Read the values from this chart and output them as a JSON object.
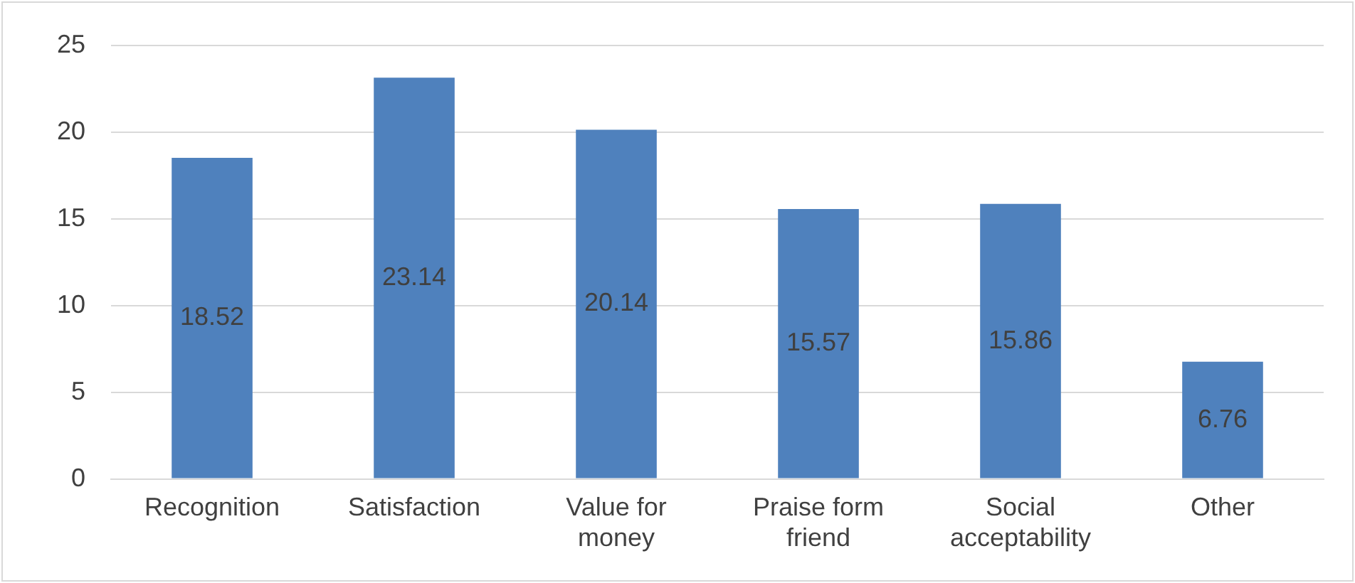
{
  "chart_data": {
    "type": "bar",
    "categories": [
      "Recognition",
      "Satisfaction",
      "Value for money",
      "Praise form friend",
      "Social acceptability",
      "Other"
    ],
    "values": [
      18.52,
      23.14,
      20.14,
      15.57,
      15.86,
      6.76
    ],
    "color": "#4f81bd",
    "ylim": [
      0,
      25
    ],
    "yticks": [
      0,
      5,
      10,
      15,
      20,
      25
    ],
    "grid": "y",
    "legend": false,
    "data_labels": true
  }
}
